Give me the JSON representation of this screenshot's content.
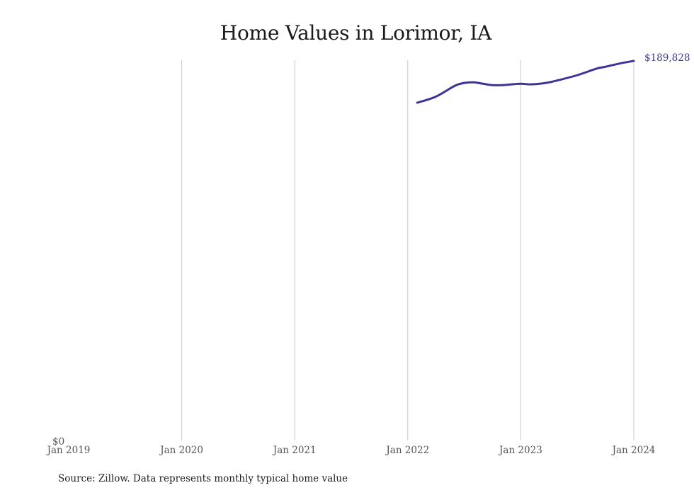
{
  "title": "Home Values in Lorimor, IA",
  "source": "Source: Zillow. Data represents monthly typical home value",
  "colors": {
    "line": "#3a3596",
    "grid": "#c8c8c8",
    "tick_text": "#555555"
  },
  "end_label": "$189,828",
  "zero_label": "$0",
  "chart_data": {
    "type": "line",
    "title": "Home Values in Lorimor, IA",
    "xlabel": "",
    "ylabel": "",
    "ylim": [
      0,
      189828
    ],
    "grid": "vertical",
    "x_ticks": [
      "Jan 2019",
      "Jan 2020",
      "Jan 2021",
      "Jan 2022",
      "Jan 2023",
      "Jan 2024"
    ],
    "y_ticks": [
      "$0"
    ],
    "series": [
      {
        "name": "Typical home value",
        "x": [
          "2022-02",
          "2022-04",
          "2022-06",
          "2022-07",
          "2022-08",
          "2022-09",
          "2022-10",
          "2022-11",
          "2022-12",
          "2023-01",
          "2023-02",
          "2023-03",
          "2023-04",
          "2023-05",
          "2023-07",
          "2023-09",
          "2023-10",
          "2023-11",
          "2023-12",
          "2024-01"
        ],
        "values": [
          168900,
          172000,
          177400,
          178800,
          179100,
          178400,
          177700,
          177700,
          178100,
          178400,
          178100,
          178400,
          179100,
          180200,
          182700,
          185900,
          186900,
          188000,
          189000,
          189828
        ]
      }
    ],
    "annotations": [
      {
        "text": "$189,828",
        "x": "2024-01"
      }
    ]
  }
}
